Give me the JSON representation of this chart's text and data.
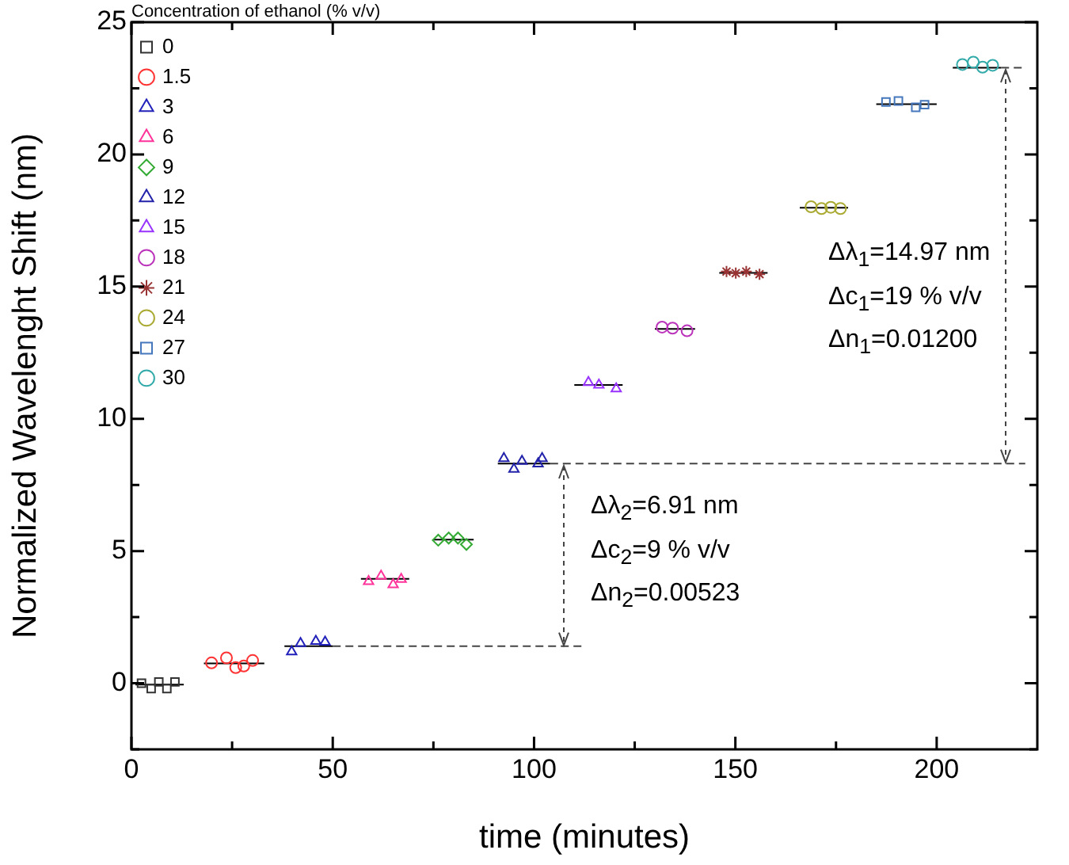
{
  "chart_data": {
    "type": "scatter",
    "xlabel": "time (minutes)",
    "ylabel": "Normalized Wavelenght Shift (nm)",
    "legend_title": "Concentration of ethanol (% v/v)",
    "legend": "top left",
    "grid": false,
    "xlim": [
      0,
      225
    ],
    "xticks": [
      0,
      {
        "value": 25,
        "label": null
      },
      50,
      {
        "value": 75,
        "label": null
      },
      100,
      {
        "value": 125,
        "label": null
      },
      150,
      {
        "value": 175,
        "label": null
      },
      200
    ],
    "ylim": [
      -2.5,
      25
    ],
    "yticks": [
      {
        "value": -2.5,
        "label": null
      },
      0,
      {
        "value": 2.5,
        "label": null
      },
      5,
      {
        "value": 7.5,
        "label": null
      },
      10,
      {
        "value": 12.5,
        "label": null
      },
      15,
      {
        "value": 17.5,
        "label": null
      },
      20,
      {
        "value": 22.5,
        "label": null
      },
      25
    ],
    "annotations": [
      "Δλ$_{1}$=14.97 nm",
      "Δc$_{1}$=19 % v/v",
      "Δn$_{1}$=0.01200",
      "Δλ$_{2}$=6.91 nm",
      "Δc$_{2}$=9 % v/v",
      "Δn$_{2}$=0.00523"
    ],
    "series": [
      {
        "name": "0",
        "color": "#333333",
        "marker": "square",
        "x": [
          2.5,
          4.9,
          6.8,
          8.8,
          10.8
        ],
        "values": [
          0,
          -0.2,
          0.05,
          -0.2,
          0.05
        ]
      },
      {
        "name": "1.5",
        "color": "#ff3333",
        "marker": "circle",
        "x": [
          19.9,
          23.6,
          25.9,
          27.9,
          30.1
        ],
        "values": [
          0.77,
          0.96,
          0.59,
          0.65,
          0.86
        ]
      },
      {
        "name": "3",
        "color": "#2222bb",
        "marker": "triangle",
        "x": [
          39.8,
          42.0,
          45.8,
          48.1
        ],
        "values": [
          1.19,
          1.51,
          1.59,
          1.56
        ]
      },
      {
        "name": "6",
        "color": "#ff3399",
        "marker": "triangle",
        "x": [
          58.9,
          62.0,
          65.0,
          67.0
        ],
        "values": [
          3.85,
          4.05,
          3.73,
          3.93
        ]
      },
      {
        "name": "9",
        "color": "#33aa33",
        "marker": "diamond",
        "x": [
          76.2,
          78.8,
          81.1,
          83.2
        ],
        "values": [
          5.41,
          5.49,
          5.49,
          5.25
        ]
      },
      {
        "name": "12",
        "color": "#2222aa",
        "marker": "triangle",
        "x": [
          92.5,
          95.0,
          97.0,
          101.0,
          102.0
        ],
        "values": [
          8.5,
          8.1,
          8.4,
          8.3,
          8.5
        ]
      },
      {
        "name": "15",
        "color": "#9933ff",
        "marker": "triangle",
        "x": [
          113.5,
          116.1,
          120.4
        ],
        "values": [
          11.38,
          11.28,
          11.14
        ]
      },
      {
        "name": "18",
        "color": "#bb33bb",
        "marker": "circle",
        "x": [
          131.8,
          134.4,
          138.0
        ],
        "values": [
          13.47,
          13.43,
          13.33
        ]
      },
      {
        "name": "21",
        "color": "#993333",
        "marker": "cross",
        "x": [
          147.8,
          150.1,
          152.7,
          156.0
        ],
        "values": [
          15.57,
          15.51,
          15.57,
          15.47
        ]
      },
      {
        "name": "24",
        "color": "#aaaa33",
        "marker": "circle",
        "x": [
          168.8,
          171.4,
          173.7,
          176.1
        ],
        "values": [
          18.02,
          17.95,
          18.0,
          17.95
        ]
      },
      {
        "name": "27",
        "color": "#4477bb",
        "marker": "square",
        "x": [
          187.4,
          190.5,
          194.8,
          197.0
        ],
        "values": [
          21.98,
          22.02,
          21.78,
          21.88
        ]
      },
      {
        "name": "30",
        "color": "#33aaaa",
        "marker": "circle",
        "x": [
          206.4,
          209.1,
          211.4,
          213.9
        ],
        "values": [
          23.4,
          23.49,
          23.3,
          23.37
        ]
      },
      {
        "type": "line",
        "color": "#000000",
        "x": [
          1,
          13
        ],
        "values": [
          -0.05,
          -0.05
        ]
      },
      {
        "type": "line",
        "color": "#000000",
        "x": [
          18,
          33
        ],
        "values": [
          0.75,
          0.75
        ]
      },
      {
        "type": "line",
        "color": "#000000",
        "x": [
          38,
          50
        ],
        "values": [
          1.4,
          1.4
        ]
      },
      {
        "type": "line",
        "color": "#000000",
        "x": [
          57,
          69
        ],
        "values": [
          3.95,
          3.95
        ]
      },
      {
        "type": "line",
        "color": "#000000",
        "x": [
          75,
          85
        ],
        "values": [
          5.43,
          5.43
        ]
      },
      {
        "type": "line",
        "color": "#000000",
        "x": [
          91,
          104
        ],
        "values": [
          8.31,
          8.31
        ]
      },
      {
        "type": "line",
        "color": "#000000",
        "x": [
          110,
          122
        ],
        "values": [
          11.28,
          11.28
        ]
      },
      {
        "type": "line",
        "color": "#000000",
        "x": [
          130,
          140
        ],
        "values": [
          13.4,
          13.4
        ]
      },
      {
        "type": "line",
        "color": "#000000",
        "x": [
          146,
          158
        ],
        "values": [
          15.52,
          15.52
        ]
      },
      {
        "type": "line",
        "color": "#000000",
        "x": [
          166,
          178
        ],
        "values": [
          17.98,
          17.98
        ]
      },
      {
        "type": "line",
        "color": "#000000",
        "x": [
          185,
          200
        ],
        "values": [
          21.9,
          21.9
        ]
      },
      {
        "type": "line",
        "color": "#000000",
        "x": [
          204,
          216
        ],
        "values": [
          23.28,
          23.28
        ]
      },
      {
        "type": "line",
        "color": "#444444",
        "line_style": "dashed",
        "x": [
          50,
          112
        ],
        "values": [
          1.4,
          1.4
        ]
      },
      {
        "type": "line",
        "color": "#444444",
        "line_style": "dashed",
        "x": [
          104,
          222
        ],
        "values": [
          8.31,
          8.31
        ]
      },
      {
        "type": "line",
        "color": "#444444",
        "line_style": "dashed",
        "x": [
          216,
          222
        ],
        "values": [
          23.28,
          23.28
        ]
      }
    ]
  }
}
